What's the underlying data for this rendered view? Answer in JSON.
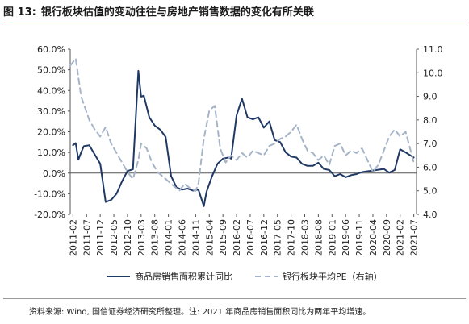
{
  "figure": {
    "number_label": "图 13:",
    "title": "银行板块估值的变动往往与房地产销售数据的变化有所关联"
  },
  "footer": {
    "source": "资料来源: Wind, 国信证券经济研究所整理。注: 2021 年商品房销售面积同比为两年平均增速。"
  },
  "chart_data": {
    "type": "line",
    "x_tick_labels": [
      "2011-02",
      "2011-07",
      "2011-12",
      "2012-05",
      "2012-10",
      "2013-03",
      "2013-08",
      "2014-01",
      "2014-06",
      "2014-11",
      "2015-04",
      "2015-09",
      "2016-02",
      "2016-07",
      "2016-12",
      "2017-05",
      "2017-10",
      "2018-03",
      "2018-08",
      "2019-01",
      "2019-06",
      "2019-11",
      "2020-04",
      "2020-09",
      "2021-02",
      "2021-07"
    ],
    "y_left": {
      "ticks": [
        "-20.0%",
        "-10.0%",
        "0.0%",
        "10.0%",
        "20.0%",
        "30.0%",
        "40.0%",
        "50.0%",
        "60.0%"
      ],
      "range": [
        -20,
        60
      ]
    },
    "y_right": {
      "ticks": [
        "4.0",
        "5.0",
        "6.0",
        "7.0",
        "8.0",
        "9.0",
        "10.0",
        "11.0"
      ],
      "range": [
        4,
        11
      ]
    },
    "legend_position": "bottom",
    "series": [
      {
        "name": "商品房销售面积累计同比",
        "axis": "left",
        "style": "solid",
        "color": "#1f3864",
        "x": [
          "2011-02",
          "2011-03",
          "2011-04",
          "2011-05",
          "2011-06",
          "2011-08",
          "2011-10",
          "2011-12",
          "2012-02",
          "2012-04",
          "2012-06",
          "2012-08",
          "2012-10",
          "2012-12",
          "2013-02",
          "2013-03",
          "2013-04",
          "2013-06",
          "2013-08",
          "2013-10",
          "2013-12",
          "2014-02",
          "2014-04",
          "2014-06",
          "2014-08",
          "2014-10",
          "2014-12",
          "2015-02",
          "2015-03",
          "2015-05",
          "2015-07",
          "2015-09",
          "2015-11",
          "2015-12",
          "2016-02",
          "2016-04",
          "2016-06",
          "2016-08",
          "2016-10",
          "2016-12",
          "2017-02",
          "2017-04",
          "2017-06",
          "2017-08",
          "2017-10",
          "2017-12",
          "2018-02",
          "2018-04",
          "2018-06",
          "2018-08",
          "2018-10",
          "2018-12",
          "2019-02",
          "2019-04",
          "2019-06",
          "2019-08",
          "2019-10",
          "2019-12",
          "2020-08",
          "2020-10",
          "2020-12",
          "2021-02",
          "2021-04",
          "2021-07"
        ],
        "values": [
          13.5,
          14.5,
          6.5,
          10.0,
          13.0,
          13.5,
          9.0,
          4.5,
          -14.0,
          -13.0,
          -10.0,
          -4.0,
          1.0,
          1.8,
          49.5,
          37.0,
          37.5,
          27.0,
          23.0,
          21.0,
          17.5,
          -1.5,
          -7.0,
          -8.0,
          -7.5,
          -8.5,
          -8.0,
          -16.0,
          -9.0,
          -1.5,
          4.5,
          7.0,
          7.5,
          7.0,
          28.0,
          36.0,
          27.0,
          26.0,
          27.0,
          22.0,
          25.0,
          16.0,
          15.0,
          10.0,
          8.0,
          7.5,
          4.5,
          3.5,
          3.5,
          5.0,
          2.0,
          1.5,
          -1.5,
          -0.5,
          -2.0,
          -1.0,
          -0.5,
          0.5,
          2.0,
          0.2,
          1.5,
          11.5,
          10.0,
          7.5
        ]
      },
      {
        "name": "银行板块平均PE（右轴）",
        "axis": "right",
        "style": "dashed",
        "color": "#a6b4c8",
        "x": [
          "2011-01",
          "2011-03",
          "2011-05",
          "2011-08",
          "2011-10",
          "2011-12",
          "2012-02",
          "2012-04",
          "2012-06",
          "2012-08",
          "2012-10",
          "2012-12",
          "2013-02",
          "2013-03",
          "2013-05",
          "2013-07",
          "2013-09",
          "2013-11",
          "2014-01",
          "2014-03",
          "2014-05",
          "2014-07",
          "2014-09",
          "2014-11",
          "2014-12",
          "2015-02",
          "2015-04",
          "2015-06",
          "2015-08",
          "2015-10",
          "2015-12",
          "2016-02",
          "2016-04",
          "2016-06",
          "2016-08",
          "2016-10",
          "2016-12",
          "2017-02",
          "2017-04",
          "2017-06",
          "2017-08",
          "2017-10",
          "2017-12",
          "2018-02",
          "2018-04",
          "2018-06",
          "2018-08",
          "2018-10",
          "2018-12",
          "2019-02",
          "2019-04",
          "2019-06",
          "2019-08",
          "2019-10",
          "2019-12",
          "2020-02",
          "2020-04",
          "2020-06",
          "2020-08",
          "2020-10",
          "2020-12",
          "2021-02",
          "2021-04",
          "2021-07"
        ],
        "values": [
          10.3,
          10.6,
          9.0,
          8.0,
          7.6,
          7.3,
          7.7,
          7.0,
          6.6,
          6.2,
          5.8,
          5.5,
          6.3,
          7.0,
          6.8,
          6.2,
          5.8,
          5.6,
          5.4,
          5.2,
          5.0,
          5.3,
          5.1,
          5.0,
          5.3,
          7.2,
          8.4,
          8.6,
          6.8,
          6.2,
          6.5,
          6.3,
          6.6,
          6.4,
          6.7,
          6.6,
          6.5,
          6.9,
          7.0,
          7.2,
          7.3,
          7.5,
          7.8,
          7.2,
          6.7,
          6.6,
          6.3,
          6.5,
          6.1,
          6.9,
          7.0,
          6.5,
          6.7,
          6.6,
          6.8,
          6.3,
          5.8,
          6.1,
          6.7,
          7.3,
          7.6,
          7.3,
          7.5,
          6.2
        ]
      }
    ]
  }
}
